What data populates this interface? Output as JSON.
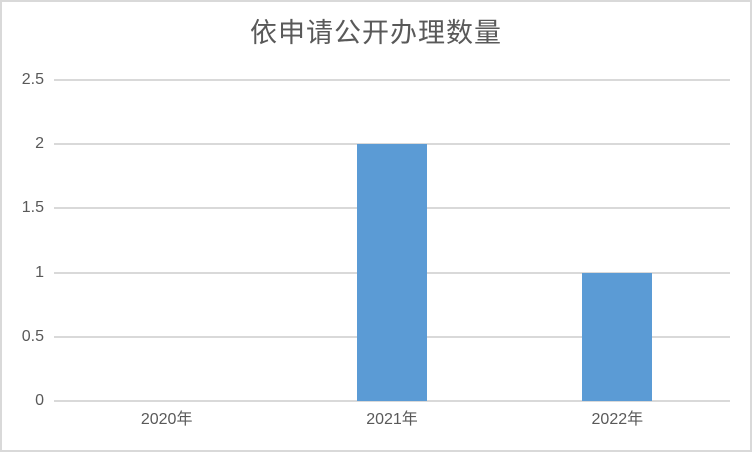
{
  "chart_data": {
    "type": "bar",
    "title": "依申请公开办理数量",
    "categories": [
      "2020年",
      "2021年",
      "2022年"
    ],
    "values": [
      0,
      2,
      1
    ],
    "xlabel": "",
    "ylabel": "",
    "ylim": [
      0,
      2.5
    ],
    "yticks": [
      0,
      0.5,
      1,
      1.5,
      2,
      2.5
    ],
    "ytick_labels": [
      "0",
      "0.5",
      "1",
      "1.5",
      "2",
      "2.5"
    ],
    "grid": true,
    "legend": false,
    "colors": {
      "bar": "#5b9bd5",
      "gridline": "#d9d9d9",
      "frame_border": "#d9d9d9",
      "text": "#595959"
    }
  }
}
